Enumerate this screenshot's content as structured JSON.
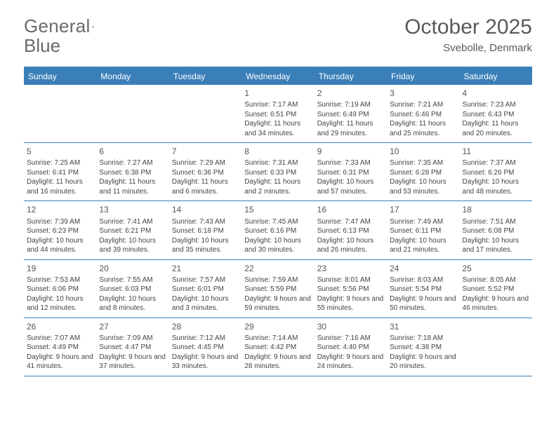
{
  "logo": {
    "text1": "General",
    "text2": "Blue"
  },
  "title": "October 2025",
  "location": "Svebolle, Denmark",
  "colors": {
    "header_bg": "#3b7fb9",
    "header_text": "#ffffff",
    "border": "#3b7fb9",
    "body_text": "#444444",
    "title_text": "#5a5a5a",
    "logo_text": "#6a6a6a",
    "logo_accent": "#2b6aa8",
    "background": "#ffffff"
  },
  "day_names": [
    "Sunday",
    "Monday",
    "Tuesday",
    "Wednesday",
    "Thursday",
    "Friday",
    "Saturday"
  ],
  "weeks": [
    [
      null,
      null,
      null,
      {
        "n": "1",
        "sr": "Sunrise: 7:17 AM",
        "ss": "Sunset: 6:51 PM",
        "dl": "Daylight: 11 hours and 34 minutes."
      },
      {
        "n": "2",
        "sr": "Sunrise: 7:19 AM",
        "ss": "Sunset: 6:49 PM",
        "dl": "Daylight: 11 hours and 29 minutes."
      },
      {
        "n": "3",
        "sr": "Sunrise: 7:21 AM",
        "ss": "Sunset: 6:46 PM",
        "dl": "Daylight: 11 hours and 25 minutes."
      },
      {
        "n": "4",
        "sr": "Sunrise: 7:23 AM",
        "ss": "Sunset: 6:43 PM",
        "dl": "Daylight: 11 hours and 20 minutes."
      }
    ],
    [
      {
        "n": "5",
        "sr": "Sunrise: 7:25 AM",
        "ss": "Sunset: 6:41 PM",
        "dl": "Daylight: 11 hours and 16 minutes."
      },
      {
        "n": "6",
        "sr": "Sunrise: 7:27 AM",
        "ss": "Sunset: 6:38 PM",
        "dl": "Daylight: 11 hours and 11 minutes."
      },
      {
        "n": "7",
        "sr": "Sunrise: 7:29 AM",
        "ss": "Sunset: 6:36 PM",
        "dl": "Daylight: 11 hours and 6 minutes."
      },
      {
        "n": "8",
        "sr": "Sunrise: 7:31 AM",
        "ss": "Sunset: 6:33 PM",
        "dl": "Daylight: 11 hours and 2 minutes."
      },
      {
        "n": "9",
        "sr": "Sunrise: 7:33 AM",
        "ss": "Sunset: 6:31 PM",
        "dl": "Daylight: 10 hours and 57 minutes."
      },
      {
        "n": "10",
        "sr": "Sunrise: 7:35 AM",
        "ss": "Sunset: 6:28 PM",
        "dl": "Daylight: 10 hours and 53 minutes."
      },
      {
        "n": "11",
        "sr": "Sunrise: 7:37 AM",
        "ss": "Sunset: 6:26 PM",
        "dl": "Daylight: 10 hours and 48 minutes."
      }
    ],
    [
      {
        "n": "12",
        "sr": "Sunrise: 7:39 AM",
        "ss": "Sunset: 6:23 PM",
        "dl": "Daylight: 10 hours and 44 minutes."
      },
      {
        "n": "13",
        "sr": "Sunrise: 7:41 AM",
        "ss": "Sunset: 6:21 PM",
        "dl": "Daylight: 10 hours and 39 minutes."
      },
      {
        "n": "14",
        "sr": "Sunrise: 7:43 AM",
        "ss": "Sunset: 6:18 PM",
        "dl": "Daylight: 10 hours and 35 minutes."
      },
      {
        "n": "15",
        "sr": "Sunrise: 7:45 AM",
        "ss": "Sunset: 6:16 PM",
        "dl": "Daylight: 10 hours and 30 minutes."
      },
      {
        "n": "16",
        "sr": "Sunrise: 7:47 AM",
        "ss": "Sunset: 6:13 PM",
        "dl": "Daylight: 10 hours and 26 minutes."
      },
      {
        "n": "17",
        "sr": "Sunrise: 7:49 AM",
        "ss": "Sunset: 6:11 PM",
        "dl": "Daylight: 10 hours and 21 minutes."
      },
      {
        "n": "18",
        "sr": "Sunrise: 7:51 AM",
        "ss": "Sunset: 6:08 PM",
        "dl": "Daylight: 10 hours and 17 minutes."
      }
    ],
    [
      {
        "n": "19",
        "sr": "Sunrise: 7:53 AM",
        "ss": "Sunset: 6:06 PM",
        "dl": "Daylight: 10 hours and 12 minutes."
      },
      {
        "n": "20",
        "sr": "Sunrise: 7:55 AM",
        "ss": "Sunset: 6:03 PM",
        "dl": "Daylight: 10 hours and 8 minutes."
      },
      {
        "n": "21",
        "sr": "Sunrise: 7:57 AM",
        "ss": "Sunset: 6:01 PM",
        "dl": "Daylight: 10 hours and 3 minutes."
      },
      {
        "n": "22",
        "sr": "Sunrise: 7:59 AM",
        "ss": "Sunset: 5:59 PM",
        "dl": "Daylight: 9 hours and 59 minutes."
      },
      {
        "n": "23",
        "sr": "Sunrise: 8:01 AM",
        "ss": "Sunset: 5:56 PM",
        "dl": "Daylight: 9 hours and 55 minutes."
      },
      {
        "n": "24",
        "sr": "Sunrise: 8:03 AM",
        "ss": "Sunset: 5:54 PM",
        "dl": "Daylight: 9 hours and 50 minutes."
      },
      {
        "n": "25",
        "sr": "Sunrise: 8:05 AM",
        "ss": "Sunset: 5:52 PM",
        "dl": "Daylight: 9 hours and 46 minutes."
      }
    ],
    [
      {
        "n": "26",
        "sr": "Sunrise: 7:07 AM",
        "ss": "Sunset: 4:49 PM",
        "dl": "Daylight: 9 hours and 41 minutes."
      },
      {
        "n": "27",
        "sr": "Sunrise: 7:09 AM",
        "ss": "Sunset: 4:47 PM",
        "dl": "Daylight: 9 hours and 37 minutes."
      },
      {
        "n": "28",
        "sr": "Sunrise: 7:12 AM",
        "ss": "Sunset: 4:45 PM",
        "dl": "Daylight: 9 hours and 33 minutes."
      },
      {
        "n": "29",
        "sr": "Sunrise: 7:14 AM",
        "ss": "Sunset: 4:42 PM",
        "dl": "Daylight: 9 hours and 28 minutes."
      },
      {
        "n": "30",
        "sr": "Sunrise: 7:16 AM",
        "ss": "Sunset: 4:40 PM",
        "dl": "Daylight: 9 hours and 24 minutes."
      },
      {
        "n": "31",
        "sr": "Sunrise: 7:18 AM",
        "ss": "Sunset: 4:38 PM",
        "dl": "Daylight: 9 hours and 20 minutes."
      },
      null
    ]
  ]
}
